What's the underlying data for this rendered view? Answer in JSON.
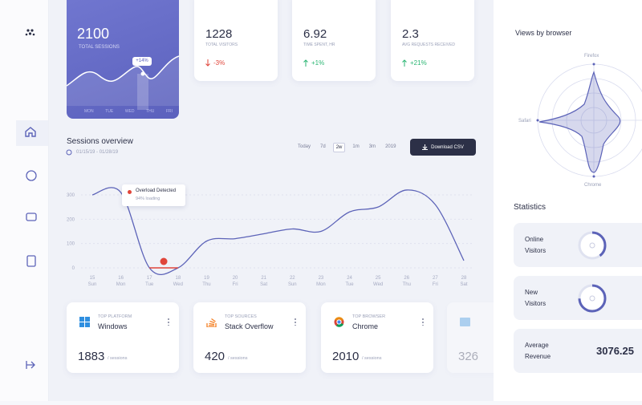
{
  "sessions_card": {
    "value": "2100",
    "label": "TOTAL SESSIONS",
    "badge": "+14%",
    "days": [
      "MON",
      "TUE",
      "WED",
      "THU",
      "FRI"
    ]
  },
  "stat_cards": [
    {
      "value": "1228",
      "label": "TOTAL VISITORS",
      "change": "-3%",
      "trend": "down"
    },
    {
      "value": "6.92",
      "label": "TIME SPENT, HR",
      "change": "+1%",
      "trend": "up"
    },
    {
      "value": "2.3",
      "label": "AVG REQUESTS RECEIVED",
      "change": "+21%",
      "trend": "up"
    }
  ],
  "sessions_overview": {
    "title": "Sessions overview",
    "date_range": "01/15/19 - 01/28/19",
    "filters": [
      "Today",
      "7d",
      "2w",
      "1m",
      "3m",
      "2019"
    ],
    "active_filter": 2,
    "button": "Download CSV",
    "annotation": {
      "title": "Overload Detected",
      "subtitle": "94% loading"
    },
    "chart": {
      "type": "line",
      "categories": [
        "15",
        "16",
        "17",
        "18",
        "19",
        "20",
        "21",
        "22",
        "23",
        "24",
        "25",
        "26",
        "27",
        "28"
      ],
      "weekdays": [
        "Sun",
        "Mon",
        "Tue",
        "Wed",
        "Thu",
        "Fri",
        "Sat",
        "Sun",
        "Mon",
        "Tue",
        "Wed",
        "Thu",
        "Fri",
        "Sat"
      ],
      "values": [
        300,
        310,
        0,
        0,
        110,
        120,
        140,
        160,
        150,
        230,
        250,
        320,
        260,
        30
      ],
      "color": "#5c63b8",
      "ylim": [
        0,
        330
      ],
      "yticks": [
        0,
        100,
        200,
        300
      ],
      "grid": true
    }
  },
  "bottom_cards": [
    {
      "label": "TOP PLATFORM",
      "name": "Windows",
      "value": "1883",
      "unit": "/ sessions"
    },
    {
      "label": "TOP SOURCES",
      "name": "Stack Overflow",
      "value": "420",
      "unit": "/ sessions"
    },
    {
      "label": "TOP BROWSER",
      "name": "Chrome",
      "value": "2010",
      "unit": "/ sessions"
    },
    {
      "value": "326"
    }
  ],
  "views_by_browser": {
    "title": "Views by browser",
    "labels": [
      "Firefox",
      "Safari",
      "Chrome"
    ]
  },
  "statistics": {
    "title": "Statistics",
    "items": [
      {
        "label": "Online Visitors"
      },
      {
        "label": "New Visitors"
      },
      {
        "label": "Average Revenue",
        "value": "3076.25"
      }
    ]
  }
}
